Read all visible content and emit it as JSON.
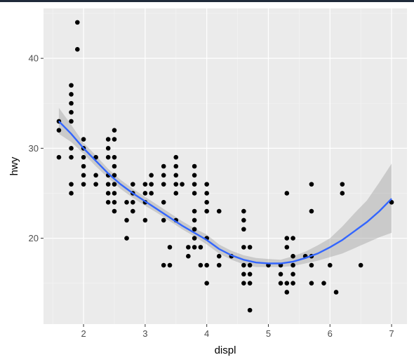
{
  "chart_data": {
    "type": "scatter",
    "title": "",
    "xlabel": "displ",
    "ylabel": "hwy",
    "xlim": [
      1.35,
      7.25
    ],
    "ylim": [
      10.45,
      45.55
    ],
    "x_ticks": [
      2,
      3,
      4,
      5,
      6,
      7
    ],
    "y_ticks": [
      20,
      30,
      40
    ],
    "grid": true,
    "points": [
      [
        1.6,
        29
      ],
      [
        1.6,
        32
      ],
      [
        1.6,
        33
      ],
      [
        1.8,
        25
      ],
      [
        1.8,
        26
      ],
      [
        1.8,
        29
      ],
      [
        1.8,
        30
      ],
      [
        1.8,
        33
      ],
      [
        1.8,
        34
      ],
      [
        1.8,
        35
      ],
      [
        1.8,
        36
      ],
      [
        1.8,
        37
      ],
      [
        1.9,
        41
      ],
      [
        1.9,
        44
      ],
      [
        2.0,
        26
      ],
      [
        2.0,
        27
      ],
      [
        2.0,
        28
      ],
      [
        2.0,
        29
      ],
      [
        2.0,
        30
      ],
      [
        2.0,
        31
      ],
      [
        2.2,
        26
      ],
      [
        2.2,
        27
      ],
      [
        2.2,
        29
      ],
      [
        2.4,
        24
      ],
      [
        2.4,
        25
      ],
      [
        2.4,
        26
      ],
      [
        2.4,
        27
      ],
      [
        2.4,
        29
      ],
      [
        2.4,
        30
      ],
      [
        2.4,
        31
      ],
      [
        2.5,
        23
      ],
      [
        2.5,
        24
      ],
      [
        2.5,
        25
      ],
      [
        2.5,
        26
      ],
      [
        2.5,
        27
      ],
      [
        2.5,
        28
      ],
      [
        2.5,
        29
      ],
      [
        2.5,
        31
      ],
      [
        2.5,
        32
      ],
      [
        2.7,
        20
      ],
      [
        2.7,
        22
      ],
      [
        2.7,
        24
      ],
      [
        2.8,
        23
      ],
      [
        2.8,
        24
      ],
      [
        2.8,
        25
      ],
      [
        2.8,
        26
      ],
      [
        3.0,
        22
      ],
      [
        3.0,
        24
      ],
      [
        3.0,
        25
      ],
      [
        3.0,
        26
      ],
      [
        3.1,
        25
      ],
      [
        3.1,
        26
      ],
      [
        3.1,
        27
      ],
      [
        3.3,
        17
      ],
      [
        3.3,
        22
      ],
      [
        3.3,
        24
      ],
      [
        3.3,
        26
      ],
      [
        3.3,
        27
      ],
      [
        3.3,
        28
      ],
      [
        3.4,
        17
      ],
      [
        3.4,
        19
      ],
      [
        3.5,
        22
      ],
      [
        3.5,
        25
      ],
      [
        3.5,
        26
      ],
      [
        3.5,
        27
      ],
      [
        3.5,
        28
      ],
      [
        3.5,
        29
      ],
      [
        3.6,
        26
      ],
      [
        3.7,
        18
      ],
      [
        3.7,
        19
      ],
      [
        3.8,
        19
      ],
      [
        3.8,
        20
      ],
      [
        3.8,
        21
      ],
      [
        3.8,
        22
      ],
      [
        3.8,
        23
      ],
      [
        3.8,
        25
      ],
      [
        3.8,
        26
      ],
      [
        3.8,
        27
      ],
      [
        3.8,
        28
      ],
      [
        3.9,
        17
      ],
      [
        3.9,
        19
      ],
      [
        4.0,
        15
      ],
      [
        4.0,
        17
      ],
      [
        4.0,
        20
      ],
      [
        4.0,
        23
      ],
      [
        4.0,
        24
      ],
      [
        4.0,
        25
      ],
      [
        4.0,
        26
      ],
      [
        4.2,
        17
      ],
      [
        4.2,
        18
      ],
      [
        4.2,
        23
      ],
      [
        4.4,
        18
      ],
      [
        4.6,
        15
      ],
      [
        4.6,
        16
      ],
      [
        4.6,
        17
      ],
      [
        4.6,
        19
      ],
      [
        4.6,
        21
      ],
      [
        4.6,
        22
      ],
      [
        4.6,
        23
      ],
      [
        4.7,
        12
      ],
      [
        4.7,
        15
      ],
      [
        4.7,
        16
      ],
      [
        4.7,
        17
      ],
      [
        4.7,
        19
      ],
      [
        5.0,
        17
      ],
      [
        5.2,
        15
      ],
      [
        5.2,
        16
      ],
      [
        5.2,
        17
      ],
      [
        5.3,
        14
      ],
      [
        5.3,
        15
      ],
      [
        5.3,
        19
      ],
      [
        5.3,
        20
      ],
      [
        5.3,
        25
      ],
      [
        5.4,
        15
      ],
      [
        5.4,
        16
      ],
      [
        5.4,
        17
      ],
      [
        5.4,
        18
      ],
      [
        5.4,
        20
      ],
      [
        5.6,
        18
      ],
      [
        5.7,
        15
      ],
      [
        5.7,
        17
      ],
      [
        5.7,
        18
      ],
      [
        5.7,
        23
      ],
      [
        5.7,
        26
      ],
      [
        5.9,
        15
      ],
      [
        6.0,
        17
      ],
      [
        6.1,
        14
      ],
      [
        6.2,
        25
      ],
      [
        6.2,
        26
      ],
      [
        6.5,
        17
      ],
      [
        7.0,
        24
      ]
    ],
    "smooth": {
      "color": "#3366ff",
      "x": [
        1.6,
        1.8,
        2.0,
        2.2,
        2.4,
        2.6,
        2.8,
        3.0,
        3.2,
        3.4,
        3.6,
        3.8,
        4.0,
        4.2,
        4.4,
        4.6,
        4.8,
        5.0,
        5.2,
        5.4,
        5.6,
        5.8,
        6.0,
        6.2,
        6.4,
        6.6,
        6.8,
        7.0
      ],
      "y": [
        33.0,
        31.6,
        30.0,
        28.6,
        27.2,
        26.0,
        25.0,
        24.1,
        23.2,
        22.3,
        21.4,
        20.6,
        19.8,
        18.8,
        18.1,
        17.6,
        17.3,
        17.2,
        17.2,
        17.4,
        17.8,
        18.3,
        19.0,
        19.8,
        20.8,
        21.8,
        23.0,
        24.4
      ],
      "lower": [
        31.6,
        30.7,
        29.4,
        28.0,
        26.7,
        25.5,
        24.5,
        23.6,
        22.8,
        21.9,
        21.0,
        20.2,
        19.3,
        18.3,
        17.6,
        17.1,
        16.8,
        16.8,
        16.8,
        16.9,
        17.2,
        17.5,
        17.9,
        18.3,
        18.9,
        19.5,
        20.1,
        20.6
      ],
      "upper": [
        34.5,
        32.6,
        30.6,
        29.2,
        27.7,
        26.5,
        25.5,
        24.6,
        23.7,
        22.8,
        21.9,
        21.1,
        20.4,
        19.3,
        18.6,
        18.1,
        17.8,
        17.7,
        17.6,
        18.0,
        18.5,
        19.2,
        20.0,
        21.3,
        22.8,
        24.2,
        26.2,
        28.3
      ]
    }
  }
}
